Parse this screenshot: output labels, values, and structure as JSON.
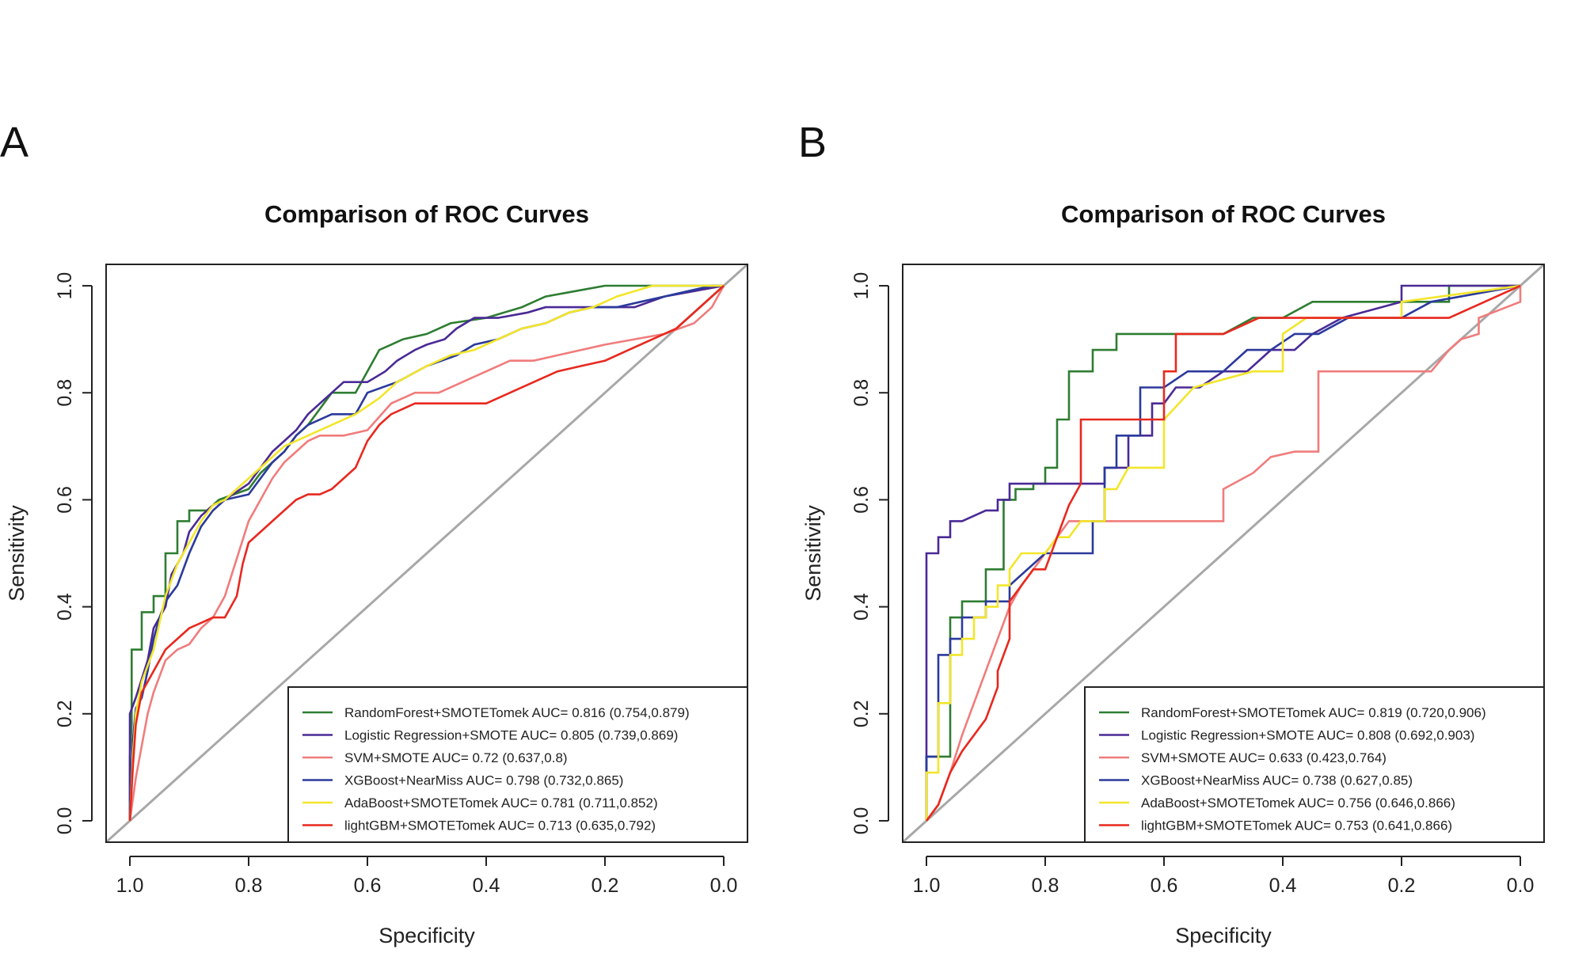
{
  "chart_data": [
    {
      "type": "line",
      "panel": "A",
      "title": "Comparison of ROC Curves",
      "xlabel": "Specificity",
      "ylabel": "Sensitivity",
      "xlim": [
        1.04,
        -0.04
      ],
      "ylim": [
        -0.04,
        1.04
      ],
      "x_ticks": [
        "1.0",
        "0.8",
        "0.6",
        "0.4",
        "0.2",
        "0.0"
      ],
      "y_ticks": [
        "0.0",
        "0.2",
        "0.4",
        "0.6",
        "0.8",
        "1.0"
      ],
      "legend_position": "bottom-right",
      "series": [
        {
          "name": "RandomForest+SMOTETomek",
          "legend": "RandomForest+SMOTETomek AUC= 0.816 (0.754,0.879)",
          "color": "#2e7d32",
          "x": [
            1.0,
            1.0,
            0.997,
            0.997,
            0.98,
            0.98,
            0.96,
            0.96,
            0.94,
            0.94,
            0.92,
            0.92,
            0.9,
            0.9,
            0.87,
            0.85,
            0.8,
            0.78,
            0.76,
            0.74,
            0.72,
            0.7,
            0.68,
            0.66,
            0.64,
            0.62,
            0.6,
            0.58,
            0.56,
            0.54,
            0.5,
            0.46,
            0.4,
            0.34,
            0.3,
            0.25,
            0.2,
            0.15,
            0.1,
            0.0
          ],
          "y": [
            0.0,
            0.12,
            0.18,
            0.32,
            0.32,
            0.39,
            0.39,
            0.42,
            0.42,
            0.5,
            0.5,
            0.56,
            0.56,
            0.58,
            0.58,
            0.6,
            0.62,
            0.65,
            0.67,
            0.69,
            0.72,
            0.74,
            0.77,
            0.8,
            0.8,
            0.8,
            0.84,
            0.88,
            0.89,
            0.9,
            0.91,
            0.93,
            0.94,
            0.96,
            0.98,
            0.99,
            1.0,
            1.0,
            1.0,
            1.0
          ]
        },
        {
          "name": "Logistic Regression+SMOTE",
          "legend": "Logistic Regression+SMOTE AUC= 0.805 (0.739,0.869)",
          "color": "#4a2a96",
          "x": [
            1.0,
            1.0,
            0.99,
            0.99,
            0.97,
            0.96,
            0.94,
            0.93,
            0.91,
            0.9,
            0.88,
            0.86,
            0.84,
            0.8,
            0.78,
            0.76,
            0.74,
            0.72,
            0.7,
            0.68,
            0.66,
            0.64,
            0.6,
            0.57,
            0.55,
            0.52,
            0.5,
            0.47,
            0.45,
            0.42,
            0.38,
            0.33,
            0.3,
            0.2,
            0.15,
            0.1,
            0.05,
            0.0
          ],
          "y": [
            0.0,
            0.2,
            0.23,
            0.23,
            0.3,
            0.36,
            0.4,
            0.46,
            0.5,
            0.54,
            0.57,
            0.59,
            0.6,
            0.63,
            0.66,
            0.69,
            0.71,
            0.73,
            0.76,
            0.78,
            0.8,
            0.82,
            0.82,
            0.84,
            0.86,
            0.88,
            0.89,
            0.9,
            0.92,
            0.94,
            0.94,
            0.95,
            0.96,
            0.96,
            0.96,
            0.98,
            0.99,
            1.0
          ]
        },
        {
          "name": "SVM+SMOTE",
          "legend": "SVM+SMOTE AUC= 0.72 (0.637,0.8)",
          "color": "#f07c7c",
          "x": [
            1.0,
            0.99,
            0.98,
            0.97,
            0.96,
            0.94,
            0.92,
            0.9,
            0.88,
            0.86,
            0.84,
            0.82,
            0.8,
            0.78,
            0.76,
            0.74,
            0.72,
            0.7,
            0.68,
            0.64,
            0.6,
            0.56,
            0.52,
            0.48,
            0.44,
            0.4,
            0.36,
            0.32,
            0.28,
            0.24,
            0.2,
            0.15,
            0.1,
            0.05,
            0.02,
            0.0
          ],
          "y": [
            0.0,
            0.08,
            0.14,
            0.2,
            0.24,
            0.3,
            0.32,
            0.33,
            0.36,
            0.38,
            0.42,
            0.49,
            0.56,
            0.6,
            0.64,
            0.67,
            0.69,
            0.71,
            0.72,
            0.72,
            0.73,
            0.78,
            0.8,
            0.8,
            0.82,
            0.84,
            0.86,
            0.86,
            0.87,
            0.88,
            0.89,
            0.9,
            0.91,
            0.93,
            0.96,
            1.0
          ]
        },
        {
          "name": "XGBoost+NearMiss",
          "legend": "XGBoost+NearMiss AUC= 0.798 (0.732,0.865)",
          "color": "#2b3a9c",
          "x": [
            1.0,
            0.995,
            0.99,
            0.98,
            0.97,
            0.96,
            0.95,
            0.94,
            0.92,
            0.9,
            0.88,
            0.86,
            0.84,
            0.8,
            0.78,
            0.76,
            0.74,
            0.72,
            0.7,
            0.66,
            0.62,
            0.6,
            0.55,
            0.5,
            0.45,
            0.42,
            0.38,
            0.34,
            0.3,
            0.26,
            0.22,
            0.18,
            0.14,
            0.1,
            0.06,
            0.02,
            0.0
          ],
          "y": [
            0.0,
            0.15,
            0.21,
            0.23,
            0.28,
            0.34,
            0.38,
            0.41,
            0.44,
            0.5,
            0.55,
            0.58,
            0.6,
            0.61,
            0.64,
            0.67,
            0.69,
            0.72,
            0.74,
            0.76,
            0.76,
            0.8,
            0.82,
            0.85,
            0.87,
            0.89,
            0.9,
            0.92,
            0.93,
            0.95,
            0.96,
            0.96,
            0.97,
            0.98,
            0.99,
            1.0,
            1.0
          ]
        },
        {
          "name": "AdaBoost+SMOTETomek",
          "legend": "AdaBoost+SMOTETomek AUC= 0.781 (0.711,0.852)",
          "color": "#f2e62b",
          "x": [
            1.0,
            0.995,
            0.99,
            0.98,
            0.96,
            0.94,
            0.92,
            0.9,
            0.88,
            0.86,
            0.84,
            0.82,
            0.8,
            0.78,
            0.76,
            0.74,
            0.72,
            0.7,
            0.66,
            0.62,
            0.58,
            0.55,
            0.5,
            0.46,
            0.42,
            0.38,
            0.34,
            0.3,
            0.26,
            0.22,
            0.18,
            0.12,
            0.06,
            0.0
          ],
          "y": [
            0.0,
            0.12,
            0.2,
            0.26,
            0.32,
            0.42,
            0.48,
            0.52,
            0.56,
            0.59,
            0.6,
            0.62,
            0.64,
            0.66,
            0.68,
            0.7,
            0.71,
            0.72,
            0.74,
            0.76,
            0.79,
            0.82,
            0.85,
            0.87,
            0.88,
            0.9,
            0.92,
            0.93,
            0.95,
            0.96,
            0.98,
            1.0,
            1.0,
            1.0
          ]
        },
        {
          "name": "lightGBM+SMOTETomek",
          "legend": "lightGBM+SMOTETomek AUC= 0.713 (0.635,0.792)",
          "color": "#e8281e",
          "x": [
            1.0,
            0.995,
            0.99,
            0.98,
            0.96,
            0.94,
            0.92,
            0.9,
            0.88,
            0.86,
            0.84,
            0.82,
            0.81,
            0.8,
            0.78,
            0.76,
            0.74,
            0.72,
            0.7,
            0.68,
            0.66,
            0.64,
            0.62,
            0.6,
            0.58,
            0.56,
            0.52,
            0.48,
            0.44,
            0.4,
            0.36,
            0.32,
            0.28,
            0.24,
            0.2,
            0.16,
            0.12,
            0.08,
            0.04,
            0.0
          ],
          "y": [
            0.0,
            0.1,
            0.18,
            0.24,
            0.28,
            0.32,
            0.34,
            0.36,
            0.37,
            0.38,
            0.38,
            0.42,
            0.48,
            0.52,
            0.54,
            0.56,
            0.58,
            0.6,
            0.61,
            0.61,
            0.62,
            0.64,
            0.66,
            0.71,
            0.74,
            0.76,
            0.78,
            0.78,
            0.78,
            0.78,
            0.8,
            0.82,
            0.84,
            0.85,
            0.86,
            0.88,
            0.9,
            0.92,
            0.96,
            1.0
          ]
        }
      ]
    },
    {
      "type": "line",
      "panel": "B",
      "title": "Comparison of ROC Curves",
      "xlabel": "Specificity",
      "ylabel": "Sensitivity",
      "xlim": [
        1.04,
        -0.04
      ],
      "ylim": [
        -0.04,
        1.04
      ],
      "x_ticks": [
        "1.0",
        "0.8",
        "0.6",
        "0.4",
        "0.2",
        "0.0"
      ],
      "y_ticks": [
        "0.0",
        "0.2",
        "0.4",
        "0.6",
        "0.8",
        "1.0"
      ],
      "legend_position": "bottom-right",
      "series": [
        {
          "name": "RandomForest+SMOTETomek",
          "legend": "RandomForest+SMOTETomek AUC= 0.819 (0.720,0.906)",
          "color": "#2e7d32",
          "x": [
            1.0,
            1.0,
            0.96,
            0.96,
            0.94,
            0.94,
            0.9,
            0.9,
            0.87,
            0.87,
            0.85,
            0.85,
            0.82,
            0.82,
            0.8,
            0.8,
            0.78,
            0.78,
            0.76,
            0.76,
            0.72,
            0.72,
            0.68,
            0.68,
            0.66,
            0.66,
            0.6,
            0.5,
            0.45,
            0.4,
            0.35,
            0.3,
            0.2,
            0.12,
            0.12,
            0.0
          ],
          "y": [
            0.0,
            0.12,
            0.12,
            0.38,
            0.38,
            0.41,
            0.41,
            0.47,
            0.47,
            0.6,
            0.6,
            0.62,
            0.62,
            0.63,
            0.63,
            0.66,
            0.66,
            0.75,
            0.75,
            0.84,
            0.84,
            0.88,
            0.88,
            0.91,
            0.91,
            0.91,
            0.91,
            0.91,
            0.94,
            0.94,
            0.97,
            0.97,
            0.97,
            0.97,
            1.0,
            1.0
          ]
        },
        {
          "name": "Logistic Regression+SMOTE",
          "legend": "Logistic Regression+SMOTE AUC= 0.808 (0.692,0.903)",
          "color": "#4a2a96",
          "x": [
            1.0,
            1.0,
            0.98,
            0.98,
            0.96,
            0.96,
            0.94,
            0.9,
            0.88,
            0.88,
            0.86,
            0.86,
            0.7,
            0.7,
            0.66,
            0.66,
            0.62,
            0.62,
            0.6,
            0.58,
            0.54,
            0.5,
            0.46,
            0.42,
            0.38,
            0.35,
            0.3,
            0.2,
            0.2,
            0.0
          ],
          "y": [
            0.0,
            0.5,
            0.5,
            0.53,
            0.53,
            0.56,
            0.56,
            0.58,
            0.58,
            0.6,
            0.6,
            0.63,
            0.63,
            0.66,
            0.66,
            0.72,
            0.72,
            0.78,
            0.78,
            0.81,
            0.81,
            0.84,
            0.84,
            0.88,
            0.88,
            0.91,
            0.94,
            0.97,
            1.0,
            1.0
          ]
        },
        {
          "name": "SVM+SMOTE",
          "legend": "SVM+SMOTE AUC= 0.633 (0.423,0.764)",
          "color": "#f07c7c",
          "x": [
            1.0,
            0.98,
            0.96,
            0.94,
            0.92,
            0.9,
            0.88,
            0.86,
            0.84,
            0.82,
            0.8,
            0.78,
            0.76,
            0.74,
            0.7,
            0.65,
            0.6,
            0.55,
            0.5,
            0.5,
            0.45,
            0.42,
            0.38,
            0.34,
            0.34,
            0.26,
            0.22,
            0.15,
            0.12,
            0.1,
            0.07,
            0.07,
            0.0,
            0.0
          ],
          "y": [
            0.0,
            0.03,
            0.09,
            0.16,
            0.22,
            0.28,
            0.34,
            0.4,
            0.44,
            0.47,
            0.5,
            0.53,
            0.56,
            0.56,
            0.56,
            0.56,
            0.56,
            0.56,
            0.56,
            0.62,
            0.65,
            0.68,
            0.69,
            0.69,
            0.84,
            0.84,
            0.84,
            0.84,
            0.88,
            0.9,
            0.91,
            0.94,
            0.97,
            1.0
          ]
        },
        {
          "name": "XGBoost+NearMiss",
          "legend": "XGBoost+NearMiss AUC= 0.738 (0.627,0.85)",
          "color": "#2b3a9c",
          "x": [
            1.0,
            1.0,
            0.98,
            0.98,
            0.96,
            0.96,
            0.94,
            0.94,
            0.9,
            0.9,
            0.86,
            0.86,
            0.8,
            0.78,
            0.72,
            0.72,
            0.7,
            0.7,
            0.68,
            0.68,
            0.64,
            0.64,
            0.6,
            0.6,
            0.56,
            0.5,
            0.46,
            0.42,
            0.38,
            0.34,
            0.29,
            0.2,
            0.15,
            0.0
          ],
          "y": [
            0.0,
            0.12,
            0.12,
            0.31,
            0.31,
            0.34,
            0.34,
            0.38,
            0.38,
            0.41,
            0.41,
            0.44,
            0.5,
            0.5,
            0.5,
            0.56,
            0.56,
            0.66,
            0.66,
            0.72,
            0.72,
            0.81,
            0.81,
            0.81,
            0.84,
            0.84,
            0.88,
            0.88,
            0.91,
            0.91,
            0.94,
            0.94,
            0.97,
            1.0
          ]
        },
        {
          "name": "AdaBoost+SMOTETomek",
          "legend": "AdaBoost+SMOTETomek AUC= 0.756 (0.646,0.866)",
          "color": "#f2e62b",
          "x": [
            1.0,
            1.0,
            0.98,
            0.98,
            0.96,
            0.96,
            0.94,
            0.94,
            0.92,
            0.92,
            0.9,
            0.9,
            0.88,
            0.88,
            0.86,
            0.86,
            0.84,
            0.8,
            0.78,
            0.76,
            0.74,
            0.7,
            0.7,
            0.68,
            0.66,
            0.6,
            0.6,
            0.55,
            0.45,
            0.4,
            0.4,
            0.36,
            0.32,
            0.24,
            0.2,
            0.2,
            0.0
          ],
          "y": [
            0.0,
            0.09,
            0.09,
            0.22,
            0.22,
            0.31,
            0.31,
            0.34,
            0.34,
            0.38,
            0.38,
            0.4,
            0.4,
            0.44,
            0.44,
            0.47,
            0.5,
            0.5,
            0.53,
            0.53,
            0.56,
            0.56,
            0.62,
            0.62,
            0.66,
            0.66,
            0.75,
            0.81,
            0.84,
            0.84,
            0.91,
            0.94,
            0.94,
            0.94,
            0.94,
            0.97,
            1.0
          ]
        },
        {
          "name": "lightGBM+SMOTETomek",
          "legend": "lightGBM+SMOTETomek AUC= 0.753 (0.641,0.866)",
          "color": "#e8281e",
          "x": [
            1.0,
            0.98,
            0.96,
            0.94,
            0.92,
            0.9,
            0.88,
            0.88,
            0.86,
            0.86,
            0.84,
            0.82,
            0.8,
            0.78,
            0.76,
            0.74,
            0.74,
            0.6,
            0.6,
            0.58,
            0.58,
            0.5,
            0.44,
            0.35,
            0.2,
            0.12,
            0.0
          ],
          "y": [
            0.0,
            0.03,
            0.09,
            0.13,
            0.16,
            0.19,
            0.25,
            0.28,
            0.34,
            0.41,
            0.44,
            0.47,
            0.47,
            0.53,
            0.59,
            0.63,
            0.75,
            0.75,
            0.84,
            0.84,
            0.91,
            0.91,
            0.94,
            0.94,
            0.94,
            0.94,
            1.0
          ]
        }
      ]
    }
  ]
}
